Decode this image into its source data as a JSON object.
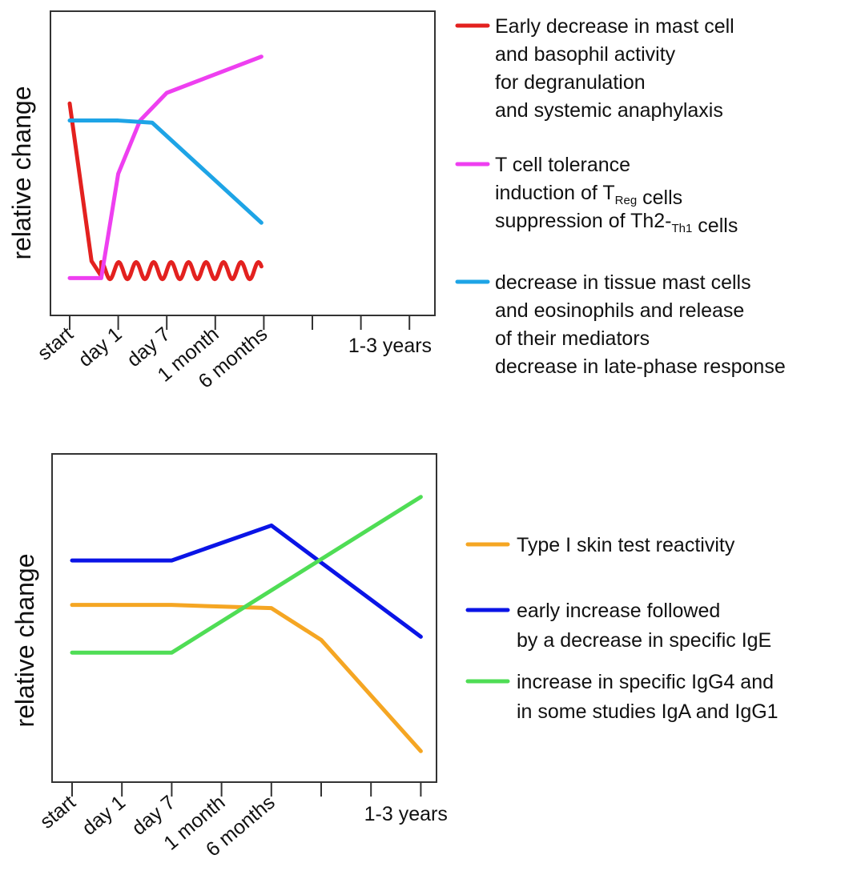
{
  "chart_data": [
    {
      "type": "line",
      "ylabel": "relative change",
      "xlabel": "",
      "categories": [
        "start",
        "day 1",
        "day 7",
        "1 month",
        "6 months",
        "1-3 years"
      ],
      "x_scale": "ordinal (ticks evenly spaced, end point beyond last tick)",
      "y_units": "relative change, unlabeled scale 0-100",
      "ylim": [
        0,
        100
      ],
      "series": [
        {
          "name": "mast cell and basophil activity",
          "color": "#e3211f",
          "legend": [
            "Early decrease in mast cell",
            "and basophil activity",
            "for degranulation",
            "and systemic anaphylaxis"
          ],
          "pattern": "oscillating",
          "points": [
            [
              0,
              92
            ],
            [
              0.45,
              18
            ],
            [
              0.65,
              11
            ],
            [
              0.9,
              14
            ],
            [
              1.2,
              16
            ],
            [
              1.5,
              16
            ],
            [
              1.8,
              16
            ],
            [
              2.1,
              15
            ],
            [
              2.4,
              15
            ],
            [
              2.7,
              15
            ],
            [
              3.0,
              15
            ],
            [
              3.3,
              15
            ],
            [
              3.65,
              12
            ],
            [
              3.95,
              14
            ]
          ],
          "wave_amplitude": 4,
          "wave_period": 0.36
        },
        {
          "name": "T cell tolerance",
          "color": "#ee3ff0",
          "legend": [
            [
              {
                "t": "T cell tolerance"
              }
            ],
            [
              {
                "t": "induction of T"
              },
              {
                "t": "Reg",
                "sub": true
              },
              {
                "t": " cells"
              }
            ],
            [
              {
                "t": "suppression of Th2-"
              },
              {
                "t": "Th1",
                "sub": true
              },
              {
                "t": " cells"
              }
            ]
          ],
          "points": [
            [
              0,
              10
            ],
            [
              0.65,
              10
            ],
            [
              1.0,
              59
            ],
            [
              1.45,
              84
            ],
            [
              2.0,
              97
            ],
            [
              3.95,
              114
            ]
          ]
        },
        {
          "name": "tissue mast cells and eosinophils",
          "color": "#1ea4e6",
          "legend": [
            "decrease in tissue mast cells",
            "and eosinophils and release",
            "of their mediators",
            "decrease in late-phase response"
          ],
          "points": [
            [
              0,
              84
            ],
            [
              1.0,
              84
            ],
            [
              1.7,
              83
            ],
            [
              3.95,
              36
            ]
          ]
        }
      ]
    },
    {
      "type": "line",
      "ylabel": "relative change",
      "xlabel": "",
      "categories": [
        "start",
        "day 1",
        "day 7",
        "1 month",
        "6 months",
        "1-3 years"
      ],
      "x_scale": "ordinal (ticks evenly spaced, end point beyond last tick)",
      "y_units": "relative change, unlabeled scale 0-100",
      "ylim": [
        0,
        100
      ],
      "series": [
        {
          "name": "Type I skin test reactivity",
          "color": "#f5a623",
          "legend": [
            "Type I skin test reactivity"
          ],
          "points": [
            [
              0,
              56
            ],
            [
              2,
              56
            ],
            [
              4,
              55
            ],
            [
              5,
              45
            ],
            [
              7,
              10
            ]
          ]
        },
        {
          "name": "specific IgE",
          "color": "#0a14e6",
          "legend": [
            "early increase followed",
            "by a decrease in specific IgE"
          ],
          "points": [
            [
              0,
              70
            ],
            [
              2,
              70
            ],
            [
              4,
              81
            ],
            [
              7,
              46
            ]
          ]
        },
        {
          "name": "specific IgG4",
          "color": "#4fdd55",
          "legend": [
            "increase in specific IgG4 and",
            "in some studies IgA and IgG1"
          ],
          "points": [
            [
              0,
              41
            ],
            [
              2,
              41
            ],
            [
              7,
              90
            ]
          ]
        }
      ]
    }
  ]
}
